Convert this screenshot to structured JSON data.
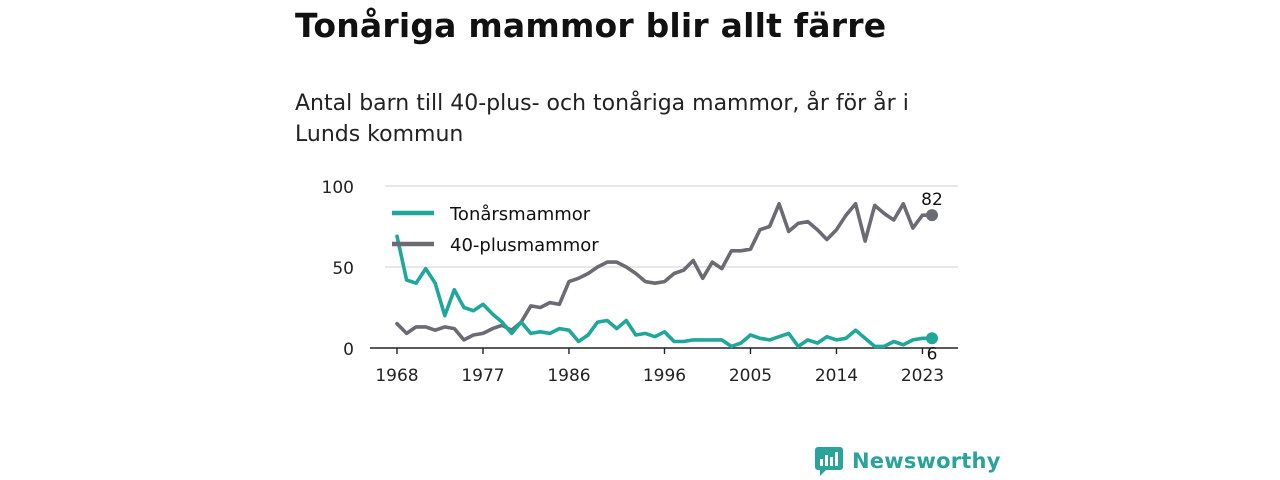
{
  "title": "Tonåriga mammor blir allt färre",
  "subtitle": "Antal barn till 40-plus- och tonåriga mammor, år för år i Lunds kommun",
  "brand": {
    "name": "Newsworthy",
    "icon": "newsworthy-logo-icon"
  },
  "chart_data": {
    "type": "line",
    "title": "",
    "xlabel": "",
    "ylabel": "",
    "xlim": [
      1968,
      2024
    ],
    "ylim": [
      0,
      100
    ],
    "x_ticks": [
      1968,
      1977,
      1986,
      1996,
      2005,
      2014,
      2023
    ],
    "y_ticks": [
      0,
      50,
      100
    ],
    "grid": true,
    "legend": "top-left",
    "x": [
      1968,
      1969,
      1970,
      1971,
      1972,
      1973,
      1974,
      1975,
      1976,
      1977,
      1978,
      1979,
      1980,
      1981,
      1982,
      1983,
      1984,
      1985,
      1986,
      1987,
      1988,
      1989,
      1990,
      1991,
      1992,
      1993,
      1994,
      1995,
      1996,
      1997,
      1998,
      1999,
      2000,
      2001,
      2002,
      2003,
      2004,
      2005,
      2006,
      2007,
      2008,
      2009,
      2010,
      2011,
      2012,
      2013,
      2014,
      2015,
      2016,
      2017,
      2018,
      2019,
      2020,
      2021,
      2022,
      2023,
      2024
    ],
    "series": [
      {
        "name": "Tonårsmammor",
        "color": "#1fa79a",
        "end_label": "6",
        "values": [
          69,
          42,
          40,
          49,
          40,
          20,
          36,
          25,
          23,
          27,
          21,
          16,
          9,
          16,
          9,
          10,
          9,
          12,
          11,
          4,
          8,
          16,
          17,
          12,
          17,
          8,
          9,
          7,
          10,
          4,
          4,
          5,
          5,
          5,
          5,
          1,
          3,
          8,
          6,
          5,
          7,
          9,
          1,
          5,
          3,
          7,
          5,
          6,
          11,
          6,
          1,
          1,
          4,
          2,
          5,
          6,
          6
        ]
      },
      {
        "name": "40-plusmammor",
        "color": "#6b6b73",
        "end_label": "82",
        "values": [
          15,
          9,
          13,
          13,
          11,
          13,
          12,
          5,
          8,
          9,
          12,
          14,
          11,
          16,
          26,
          25,
          28,
          27,
          41,
          43,
          46,
          50,
          53,
          53,
          50,
          46,
          41,
          40,
          41,
          46,
          48,
          54,
          43,
          53,
          49,
          60,
          60,
          61,
          73,
          75,
          89,
          72,
          77,
          78,
          73,
          67,
          73,
          82,
          89,
          66,
          88,
          83,
          79,
          89,
          74,
          82,
          82
        ]
      }
    ]
  }
}
